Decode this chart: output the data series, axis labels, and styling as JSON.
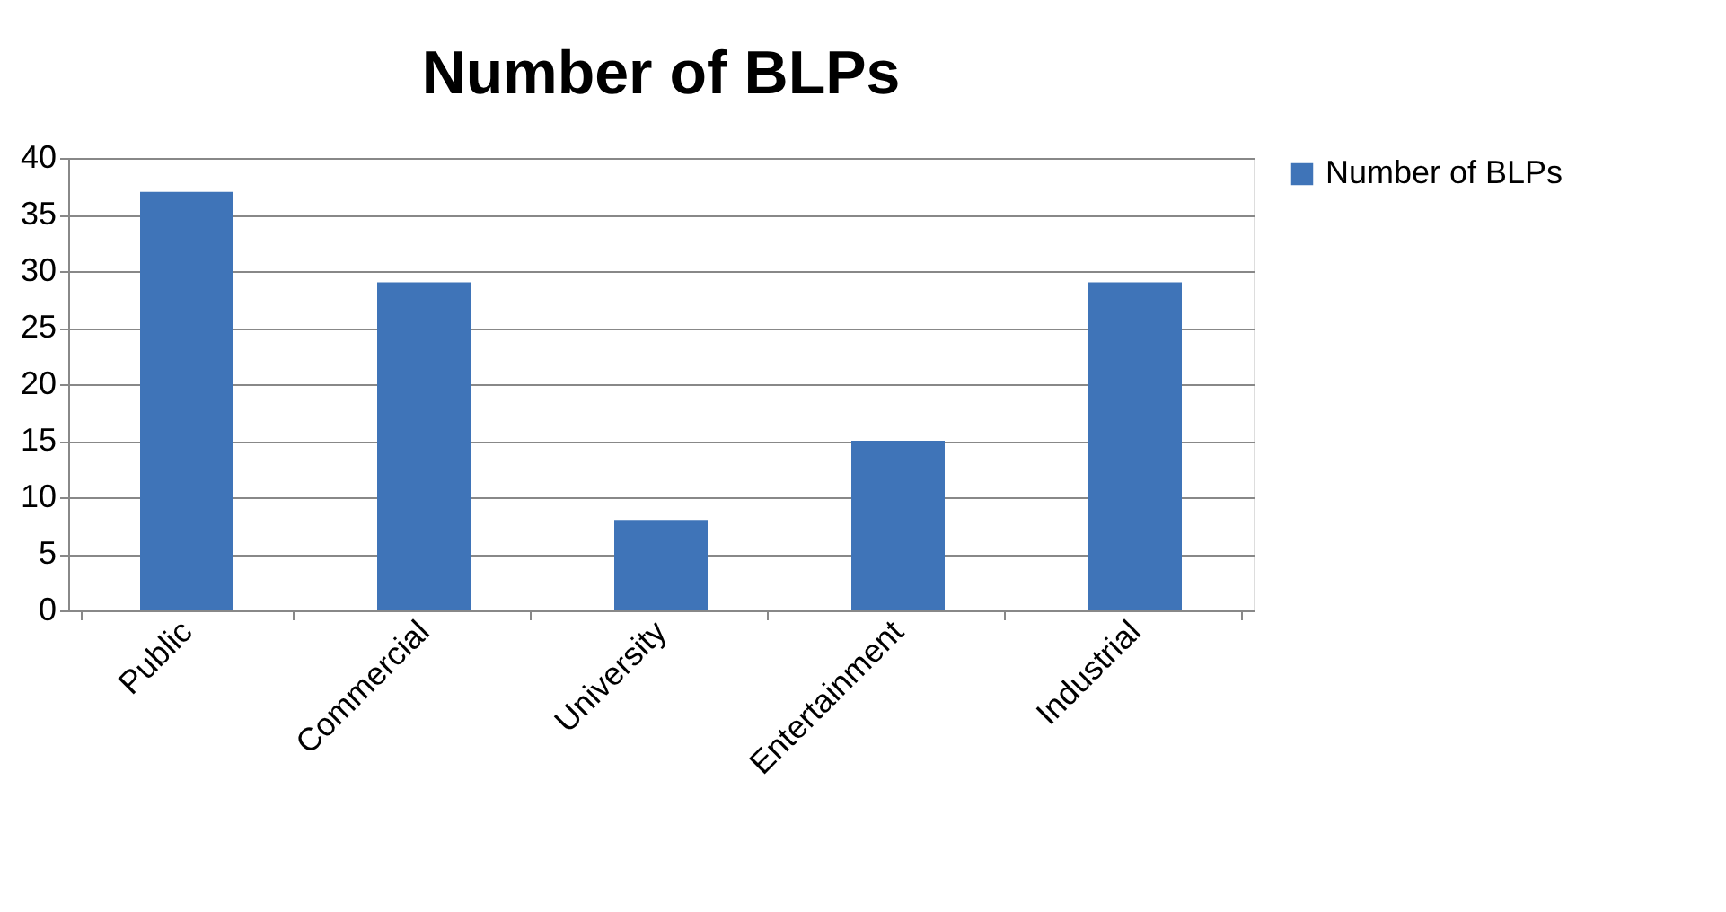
{
  "chart_data": {
    "type": "bar",
    "title": "Number of BLPs",
    "categories": [
      "Public",
      "Commercial",
      "University",
      "Entertainment",
      "Industrial"
    ],
    "series": [
      {
        "name": "Number of BLPs",
        "color": "#3f74b8",
        "values": [
          37,
          29,
          8,
          15,
          29
        ]
      }
    ],
    "ylim": [
      0,
      40
    ],
    "yticks": [
      0,
      5,
      10,
      15,
      20,
      25,
      30,
      35,
      40
    ],
    "grid": "y",
    "legend": "right"
  }
}
